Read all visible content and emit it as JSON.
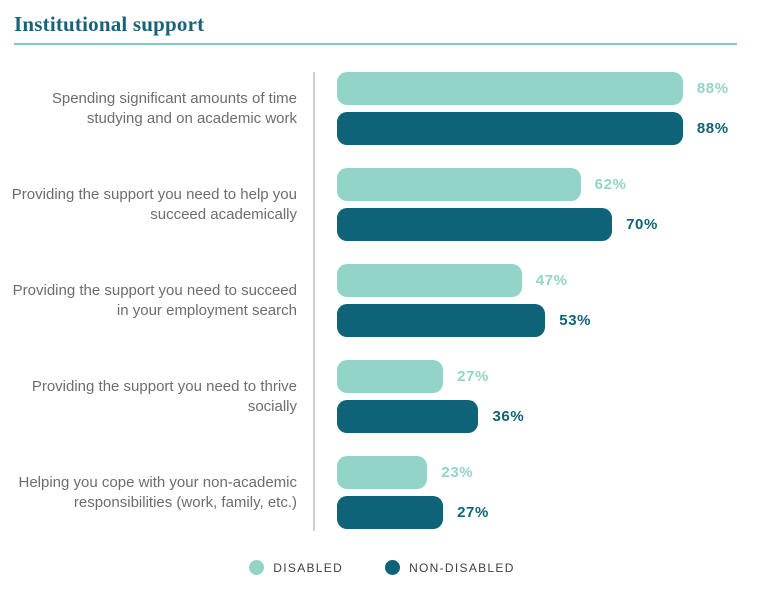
{
  "chart_data": {
    "type": "bar",
    "orientation": "horizontal",
    "title": "Institutional support",
    "categories": [
      "Spending significant amounts of time studying and on academic work",
      "Providing the support you need to help you succeed academically",
      "Providing the support you need to succeed in your employment search",
      "Providing the support you need to thrive socially",
      "Helping you cope with your non-academic responsibilities (work, family, etc.)"
    ],
    "series": [
      {
        "name": "DISABLED",
        "color": "#93d4c8",
        "values": [
          88,
          62,
          47,
          27,
          23
        ]
      },
      {
        "name": "NON-DISABLED",
        "color": "#0e6378",
        "values": [
          88,
          70,
          53,
          36,
          27
        ]
      }
    ],
    "value_suffix": "%",
    "xlim": [
      0,
      100
    ],
    "grid": false,
    "legend_position": "bottom"
  },
  "theme": {
    "title_color": "#17647a",
    "rule_color": "#7fccc0",
    "axis_line_color": "#cdcdcd",
    "category_label_color": "#6c6d70",
    "legend_text_color": "#3f4042",
    "background": "#ffffff"
  }
}
